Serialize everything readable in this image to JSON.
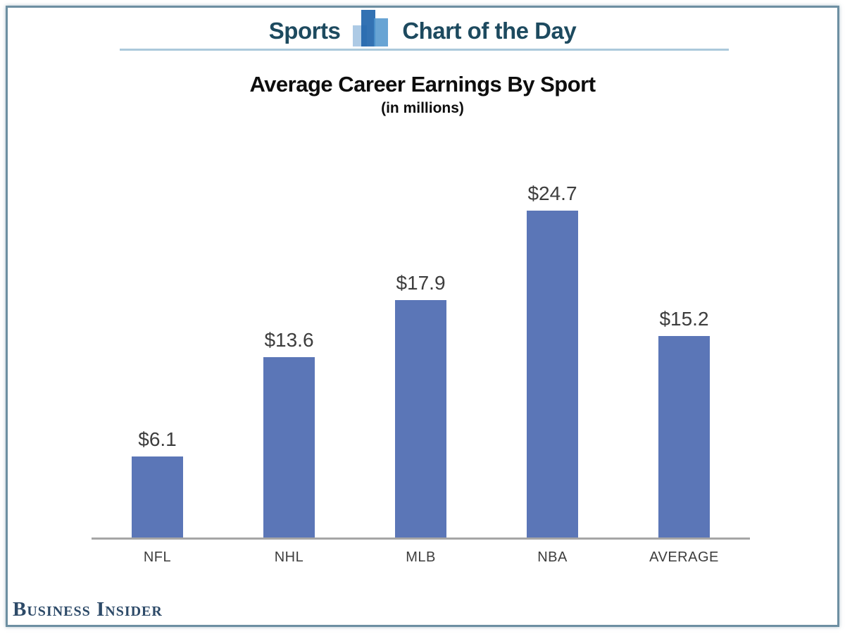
{
  "header": {
    "brand_left": "Sports",
    "brand_right": "Chart of the Day",
    "text_color": "#1d4a5f",
    "divider_color": "#abc9db",
    "logo_bar_colors": [
      "#a9c7e4",
      "#2266ad",
      "#4d94cd"
    ]
  },
  "chart_data": {
    "type": "bar",
    "title": "Average Career Earnings By Sport",
    "subtitle": "(in millions)",
    "categories": [
      "NFL",
      "NHL",
      "MLB",
      "NBA",
      "AVERAGE"
    ],
    "values": [
      6.1,
      13.6,
      17.9,
      24.7,
      15.2
    ],
    "value_labels": [
      "$6.1",
      "$13.6",
      "$17.9",
      "$24.7",
      "$15.2"
    ],
    "bar_color": "#5b76b7",
    "value_label_color": "#3d3d3d",
    "category_label_color": "#3d3d3d",
    "axis_line_color": "#a6a6a6",
    "ylim": [
      0,
      27.8
    ],
    "grid": false,
    "legend": "none"
  },
  "frame": {
    "border_color": "#6d8fa2"
  },
  "footer": {
    "logo_text": "Business Insider",
    "color": "#2d4a68"
  }
}
